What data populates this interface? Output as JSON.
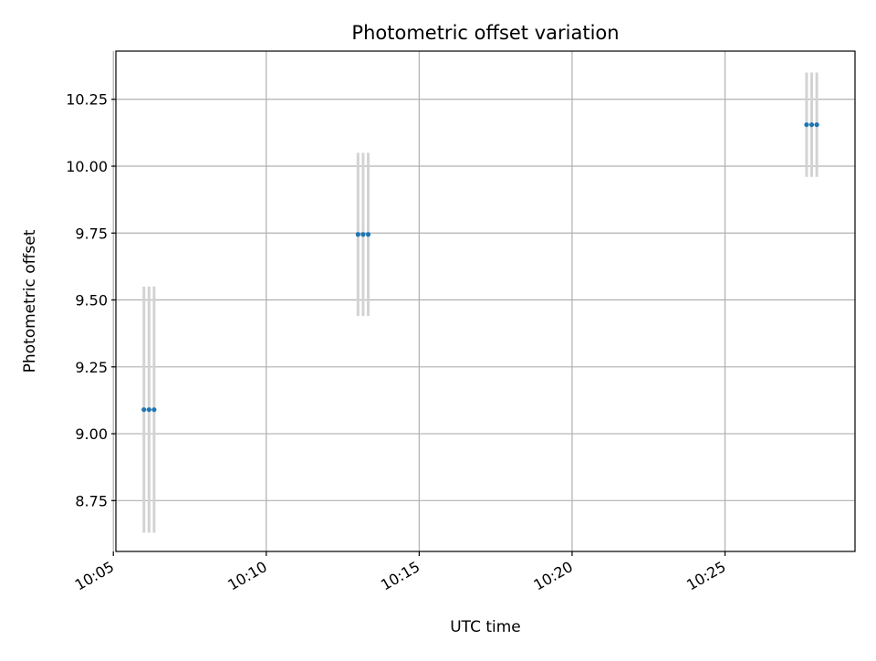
{
  "chart_data": {
    "type": "scatter",
    "title": "Photometric offset variation",
    "xlabel": "UTC time",
    "ylabel": "Photometric offset",
    "xlim": [
      "10:05:05",
      "10:29:15"
    ],
    "ylim": [
      8.56,
      10.43
    ],
    "x_ticks": [
      "10:05",
      "10:10",
      "10:15",
      "10:20",
      "10:25"
    ],
    "y_ticks": [
      8.75,
      9.0,
      9.25,
      9.5,
      9.75,
      10.0,
      10.25
    ],
    "grid": true,
    "points": [
      {
        "x": "10:06:00",
        "y": 9.09,
        "err": 0.46
      },
      {
        "x": "10:06:10",
        "y": 9.09,
        "err": 0.46
      },
      {
        "x": "10:06:20",
        "y": 9.09,
        "err": 0.46
      },
      {
        "x": "10:13:00",
        "y": 9.745,
        "err": 0.305
      },
      {
        "x": "10:13:10",
        "y": 9.745,
        "err": 0.305
      },
      {
        "x": "10:13:20",
        "y": 9.745,
        "err": 0.305
      },
      {
        "x": "10:27:40",
        "y": 10.155,
        "err": 0.195
      },
      {
        "x": "10:27:50",
        "y": 10.155,
        "err": 0.195
      },
      {
        "x": "10:28:00",
        "y": 10.155,
        "err": 0.195
      }
    ],
    "colors": {
      "marker": "#1f77b4",
      "errorbar": "#d3d3d3",
      "grid": "#b0b0b0"
    }
  }
}
